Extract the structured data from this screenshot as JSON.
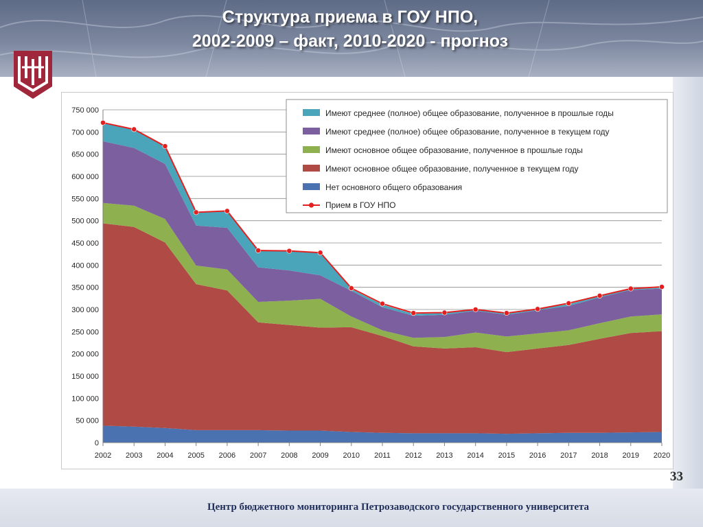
{
  "slide": {
    "title_line1": "Структура приема в ГОУ НПО,",
    "title_line2": "2002-2009 – факт, 2010-2020 - прогноз",
    "page_number": "33",
    "footer": "Центр бюджетного мониторинга Петрозаводского государственного университета",
    "logo_icon": "university-logo-icon"
  },
  "chart_data": {
    "type": "area",
    "stacked": true,
    "x": [
      "2002",
      "2003",
      "2004",
      "2005",
      "2006",
      "2007",
      "2008",
      "2009",
      "2010",
      "2011",
      "2012",
      "2013",
      "2014",
      "2015",
      "2016",
      "2017",
      "2018",
      "2019",
      "2020"
    ],
    "ylim": [
      0,
      750000
    ],
    "yticks": [
      0,
      50000,
      100000,
      150000,
      200000,
      250000,
      300000,
      350000,
      400000,
      450000,
      500000,
      550000,
      600000,
      650000,
      700000,
      750000
    ],
    "ytick_labels": [
      "0",
      "50 000",
      "100 000",
      "150 000",
      "200 000",
      "250 000",
      "300 000",
      "350 000",
      "400 000",
      "450 000",
      "500 000",
      "550 000",
      "600 000",
      "650 000",
      "700 000",
      "750 000"
    ],
    "grid": true,
    "legend_position": "top-right",
    "series": [
      {
        "name": "Нет основного общего образования",
        "color": "#4a71b0",
        "values": [
          38000,
          36000,
          33000,
          28000,
          28000,
          28000,
          27000,
          27000,
          24000,
          22000,
          21000,
          21000,
          21000,
          20000,
          21000,
          22000,
          22000,
          23000,
          24000
        ]
      },
      {
        "name": "Имеют основное общее образование, полученное в текущем году",
        "color": "#b04a45",
        "values": [
          456000,
          450000,
          418000,
          329000,
          315000,
          243000,
          238000,
          232000,
          236000,
          218000,
          196000,
          191000,
          194000,
          184000,
          191000,
          198000,
          212000,
          224000,
          227000
        ]
      },
      {
        "name": "Имеют основное общее образование, полученное в прошлые годы",
        "color": "#8fb04e",
        "values": [
          46000,
          48000,
          53000,
          42000,
          47000,
          46000,
          55000,
          65000,
          24000,
          13000,
          19000,
          26000,
          33000,
          35000,
          34000,
          33000,
          35000,
          37000,
          38000
        ]
      },
      {
        "name": "Имеют среднее (полное) общее образование, полученное в текущем году",
        "color": "#7c5f9e",
        "values": [
          139000,
          130000,
          124000,
          90000,
          94000,
          78000,
          68000,
          53000,
          58000,
          52000,
          50000,
          50000,
          49000,
          49000,
          52000,
          55000,
          58000,
          60000,
          58000
        ]
      },
      {
        "name": "Имеют среднее (полное) общее образование, полученное в прошлые годы",
        "color": "#4aa5bb",
        "values": [
          41000,
          41000,
          40000,
          30000,
          38000,
          37000,
          44000,
          51000,
          4000,
          6000,
          4000,
          4000,
          3000,
          4000,
          3000,
          4000,
          3000,
          2000,
          2000
        ]
      }
    ],
    "line_series": {
      "name": "Прием в ГОУ НПО",
      "color": "#e32020",
      "values": [
        721000,
        706000,
        668000,
        519000,
        522000,
        433000,
        432000,
        428000,
        348000,
        313000,
        292000,
        293000,
        300000,
        292000,
        301000,
        314000,
        331000,
        347000,
        351000
      ]
    }
  }
}
